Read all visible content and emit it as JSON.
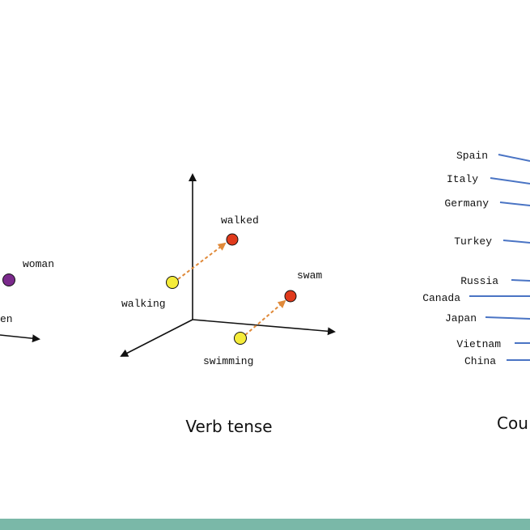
{
  "panels": {
    "gender": {
      "labels": {
        "woman": "woman",
        "men": "en"
      },
      "colors": {
        "woman_dot": "#7b2a8c"
      }
    },
    "verb_tense": {
      "caption": "Verb tense",
      "labels": {
        "walked": "walked",
        "walking": "walking",
        "swam": "swam",
        "swimming": "swimming"
      },
      "colors": {
        "present_dot": "#f5ec3a",
        "past_dot": "#e03a1c",
        "arrow": "#e08a3a"
      }
    },
    "country_capital": {
      "caption": "Cou",
      "countries": [
        "Spain",
        "Italy",
        "Germany",
        "Turkey",
        "Russia",
        "Canada",
        "Japan",
        "Vietnam",
        "China"
      ],
      "colors": {
        "line": "#4a74c4"
      }
    }
  }
}
